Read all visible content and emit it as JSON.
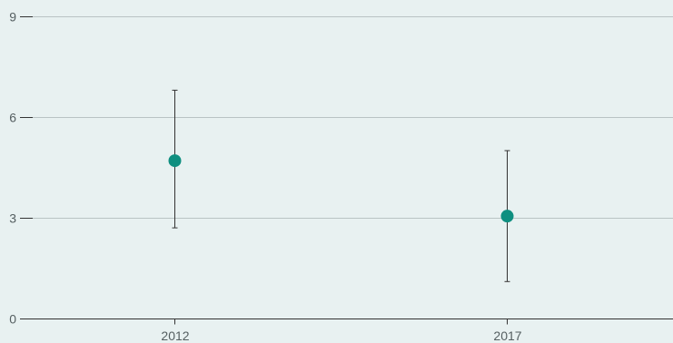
{
  "colors": {
    "background": "#e8f1f1",
    "gridline": "#b9c3c4",
    "axis": "#333333",
    "tick_label": "#555f61",
    "marker": "#0f8f80",
    "error_bar": "#333333"
  },
  "chart_data": {
    "type": "scatter",
    "subtype": "point-with-error-bars",
    "title": "",
    "xlabel": "",
    "ylabel": "",
    "categories": [
      "2012",
      "2017"
    ],
    "series": [
      {
        "values": [
          4.7,
          3.05
        ],
        "lower": [
          2.7,
          1.1
        ],
        "upper": [
          6.8,
          5.0
        ]
      }
    ],
    "ylim": [
      0,
      9
    ],
    "yticks": [
      0,
      3,
      6,
      9
    ],
    "ytick_labels": [
      "0",
      "3",
      "6",
      "9"
    ],
    "grid": true,
    "legend": "none"
  }
}
